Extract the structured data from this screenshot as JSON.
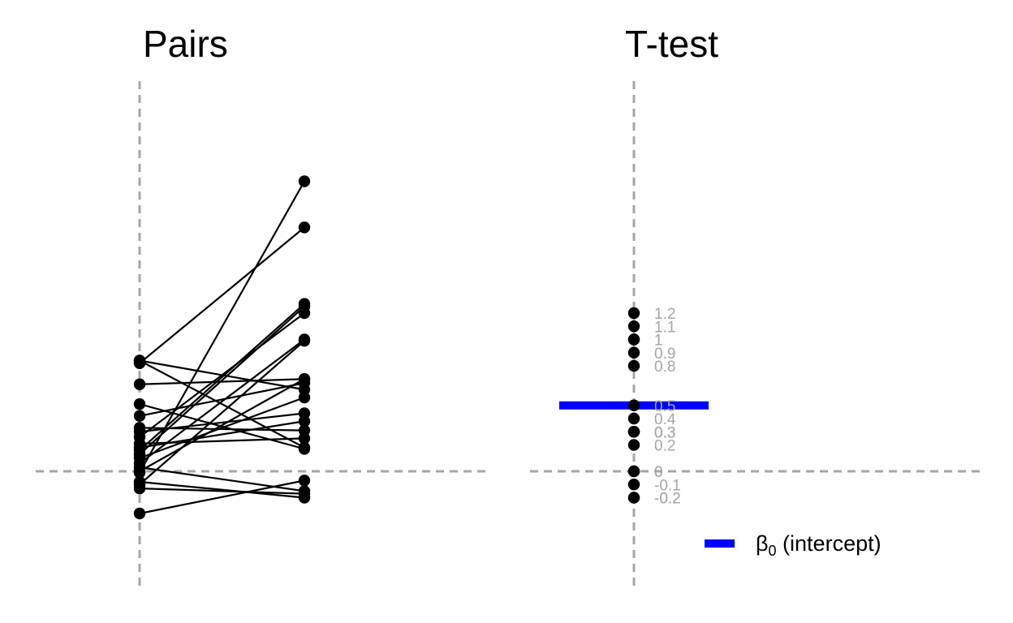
{
  "chart_data": [
    {
      "type": "line",
      "title": "Pairs",
      "xlabel": "",
      "ylabel": "",
      "pairs": [
        {
          "x0": -0.01,
          "x1": 2.2
        },
        {
          "x0": 0.82,
          "x1": 1.85
        },
        {
          "x0": 0.84,
          "x1": 0.18
        },
        {
          "x0": 0.84,
          "x1": 0.62
        },
        {
          "x0": 0.66,
          "x1": 0.7
        },
        {
          "x0": 0.51,
          "x1": 0.17
        },
        {
          "x0": 0.42,
          "x1": 0.67
        },
        {
          "x0": 0.33,
          "x1": 0.31
        },
        {
          "x0": 0.3,
          "x1": 0.44
        },
        {
          "x0": 0.26,
          "x1": 1.2
        },
        {
          "x0": 0.21,
          "x1": 0.25
        },
        {
          "x0": 0.18,
          "x1": 0.38
        },
        {
          "x0": 0.16,
          "x1": 1.27
        },
        {
          "x0": 0.13,
          "x1": 1.25
        },
        {
          "x0": 0.1,
          "x1": 0.56
        },
        {
          "x0": 0.06,
          "x1": 1.0
        },
        {
          "x0": 0.03,
          "x1": -0.15
        },
        {
          "x0": 0.0,
          "x1": 0.7
        },
        {
          "x0": -0.08,
          "x1": -0.2
        },
        {
          "x0": -0.1,
          "x1": 0.99
        },
        {
          "x0": -0.13,
          "x1": -0.17
        },
        {
          "x0": -0.32,
          "x1": -0.07
        }
      ],
      "reference_lines": {
        "x": 0,
        "y": 0
      }
    },
    {
      "type": "scatter",
      "title": "T-test",
      "xlabel": "",
      "ylabel": "",
      "values": [
        1.2,
        1.1,
        1,
        1,
        0.9,
        0.8,
        0.5,
        0.4,
        0.3,
        0.3,
        0.3,
        0.2,
        0,
        0,
        -0.1,
        -0.2,
        -0.2
      ],
      "labels": [
        "1.2",
        "1.1",
        "1",
        "1",
        "0.9",
        "0.8",
        "0.5",
        "0.4",
        "0.3",
        "0.3",
        "0.3",
        "0.2",
        "0",
        "0",
        "-0.1",
        "-0.2",
        "-0.2"
      ],
      "intercept": 0.5,
      "intercept_color": "#0000ff",
      "legend": {
        "label": "β",
        "subscript": "0",
        "suffix": " (intercept)",
        "placement": "bottom-right"
      },
      "reference_lines": {
        "x": 0,
        "y": 0
      }
    }
  ],
  "colors": {
    "points": "#000000",
    "reference": "#a6a6a6",
    "value_labels": "#a6a6a6",
    "intercept": "#0000ff"
  }
}
